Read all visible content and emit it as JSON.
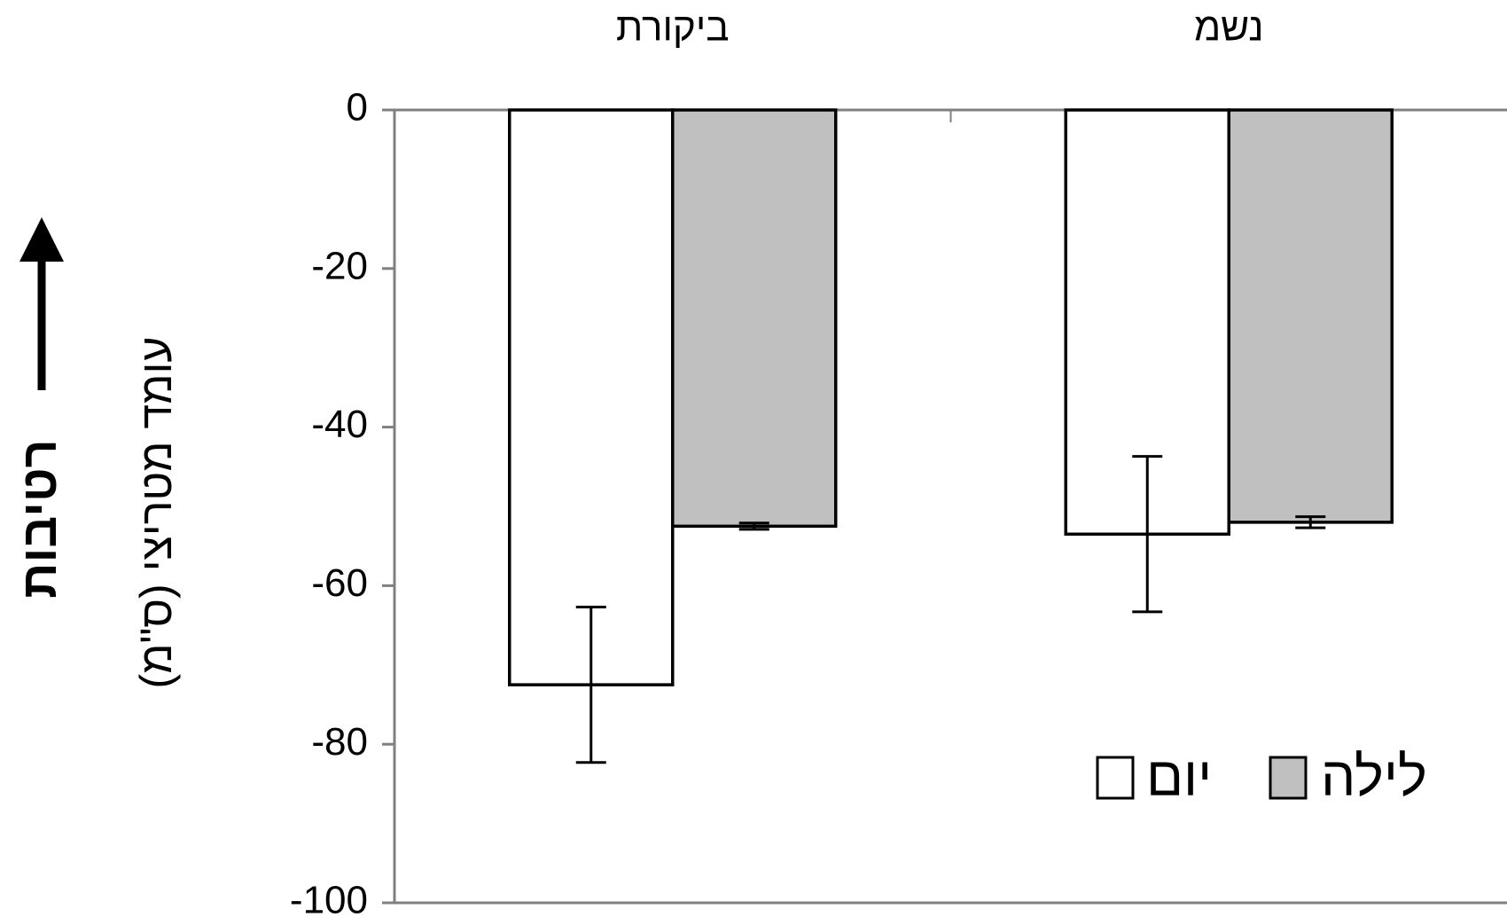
{
  "chart_data": {
    "type": "bar",
    "categories": [
      "ביקורת",
      "נשמ"
    ],
    "series": [
      {
        "name": "יום",
        "color": "#ffffff",
        "values": [
          -72.5,
          -53.5
        ],
        "errors": [
          9.8,
          9.8
        ]
      },
      {
        "name": "לילה",
        "color": "#c0c0c0",
        "values": [
          -52.5,
          -52.0
        ],
        "errors": [
          0.4,
          0.7
        ]
      }
    ],
    "ylabel": "עומד מטריצי (ס\"מ)",
    "ylabel_secondary": "רטיבות",
    "ylim": [
      -100,
      0
    ],
    "yticks": [
      "0",
      "-20",
      "-40",
      "-60",
      "-80",
      "-100"
    ],
    "ytick_values": [
      0,
      -20,
      -40,
      -60,
      -80,
      -100
    ],
    "category_position": "top",
    "legend_position": "bottom-right",
    "grid": false,
    "arrow_direction": "up"
  }
}
